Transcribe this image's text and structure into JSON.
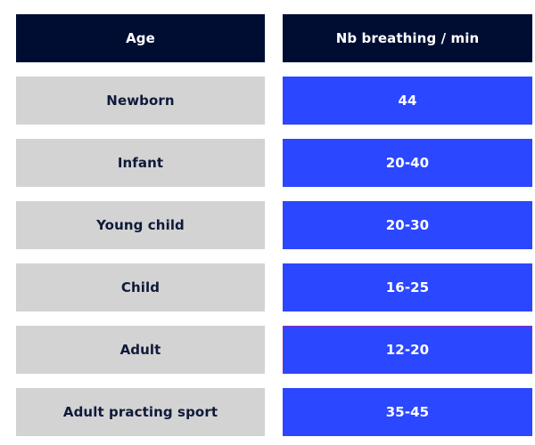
{
  "table": {
    "headers": {
      "age": "Age",
      "rate": "Nb breathing / min"
    },
    "rows": [
      {
        "age": "Newborn",
        "rate": "44"
      },
      {
        "age": "Infant",
        "rate": "20-40"
      },
      {
        "age": "Young child",
        "rate": "20-30"
      },
      {
        "age": "Child",
        "rate": "16-25"
      },
      {
        "age": "Adult",
        "rate": "12-20"
      },
      {
        "age": "Adult practing sport",
        "rate": "35-45"
      }
    ]
  },
  "colors": {
    "header_bg": "#000d33",
    "age_cell_bg": "#d3d3d3",
    "rate_cell_bg": "#2b47ff",
    "highlight_border": "#8a2bbf"
  }
}
